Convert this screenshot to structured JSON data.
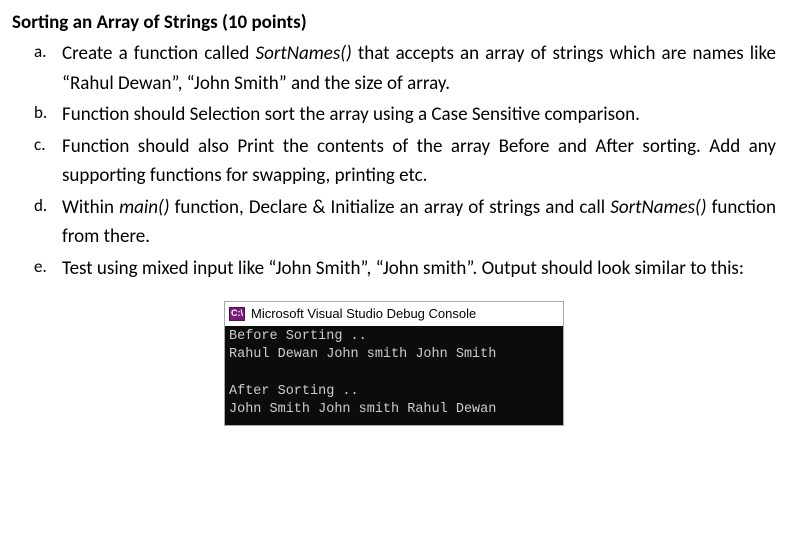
{
  "heading": "Sorting an Array of Strings (10 points)",
  "items": [
    {
      "marker": "a.",
      "segments": [
        {
          "text": "Create a function called "
        },
        {
          "text": "SortNames()",
          "italic": true
        },
        {
          "text": " that accepts an array of strings which are names like “Rahul Dewan”, “John Smith” and the size of array."
        }
      ]
    },
    {
      "marker": "b.",
      "segments": [
        {
          "text": "Function should Selection sort the array using a Case Sensitive comparison."
        }
      ]
    },
    {
      "marker": "c.",
      "segments": [
        {
          "text": "Function should also Print the contents of the array Before and After sorting.  Add any supporting functions for swapping, printing etc."
        }
      ]
    },
    {
      "marker": "d.",
      "segments": [
        {
          "text": "Within "
        },
        {
          "text": "main()",
          "italic": true
        },
        {
          "text": " function, Declare & Initialize an array of strings and call "
        },
        {
          "text": "SortNames()",
          "italic": true
        },
        {
          "text": " function from there."
        }
      ]
    },
    {
      "marker": "e.",
      "segments": [
        {
          "text": "Test using mixed input like “John Smith”, “John smith”.  Output should look similar to this:"
        }
      ]
    }
  ],
  "console": {
    "icon_text": "C:\\",
    "title": "Microsoft Visual Studio Debug Console",
    "lines": [
      "Before Sorting ..",
      "Rahul Dewan John smith John Smith",
      "",
      "After Sorting ..",
      "John Smith John smith Rahul Dewan"
    ],
    "bg_color": "#0c0c0c",
    "fg_color": "#cccccc",
    "titlebar_bg": "#ffffff",
    "titlebar_fg": "#000000",
    "icon_bg": "#7a1a7a",
    "icon_fg": "#ffffff"
  }
}
